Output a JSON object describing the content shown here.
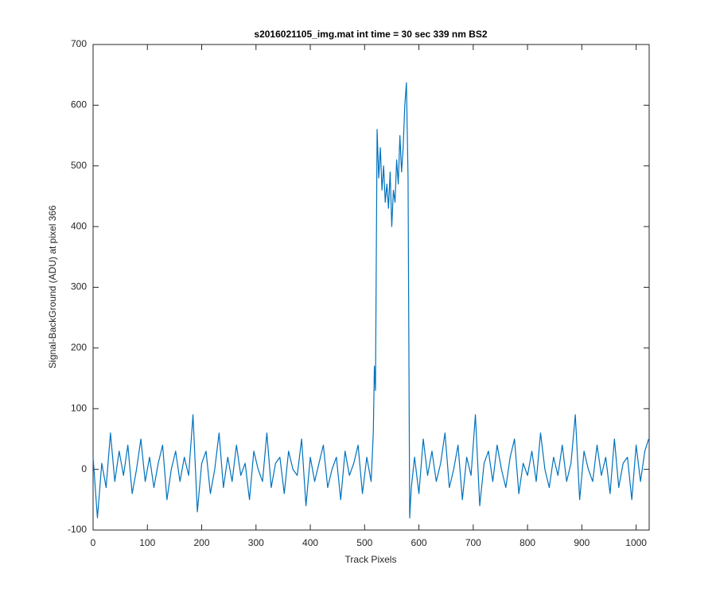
{
  "chart_data": {
    "type": "line",
    "title": "s2016021105_img.mat int time = 30 sec  339 nm BS2",
    "x_label": "Track Pixels",
    "y_label": "Signal-BackGround (ADU) at pixel 366",
    "color": "#0072bd",
    "xlim": [
      0,
      1024
    ],
    "ylim": [
      -100,
      700
    ],
    "xticks": [
      0,
      100,
      200,
      300,
      400,
      500,
      600,
      700,
      800,
      900,
      1000
    ],
    "yticks": [
      -100,
      0,
      100,
      200,
      300,
      400,
      500,
      600,
      700
    ],
    "grid": false,
    "x": [
      0,
      8,
      16,
      24,
      32,
      40,
      48,
      56,
      64,
      72,
      80,
      88,
      96,
      104,
      112,
      120,
      128,
      136,
      144,
      152,
      160,
      168,
      176,
      184,
      192,
      200,
      208,
      216,
      224,
      232,
      240,
      248,
      256,
      264,
      272,
      280,
      288,
      296,
      304,
      312,
      320,
      328,
      336,
      344,
      352,
      360,
      368,
      376,
      384,
      392,
      400,
      408,
      416,
      424,
      432,
      440,
      448,
      456,
      464,
      472,
      480,
      488,
      496,
      504,
      512,
      516,
      518,
      520,
      523,
      526,
      529,
      532,
      535,
      538,
      541,
      544,
      547,
      550,
      553,
      556,
      559,
      562,
      565,
      568,
      571,
      574,
      577,
      580,
      583,
      586,
      592,
      600,
      608,
      616,
      624,
      632,
      640,
      648,
      656,
      664,
      672,
      680,
      688,
      696,
      704,
      712,
      720,
      728,
      736,
      744,
      752,
      760,
      768,
      776,
      784,
      792,
      800,
      808,
      816,
      824,
      832,
      840,
      848,
      856,
      864,
      872,
      880,
      888,
      896,
      904,
      912,
      920,
      928,
      936,
      944,
      952,
      960,
      968,
      976,
      984,
      992,
      1000,
      1008,
      1016,
      1023
    ],
    "values": [
      20,
      -80,
      10,
      -30,
      60,
      -20,
      30,
      -10,
      40,
      -40,
      0,
      50,
      -20,
      20,
      -30,
      10,
      40,
      -50,
      0,
      30,
      -20,
      20,
      -10,
      90,
      -70,
      10,
      30,
      -40,
      0,
      60,
      -30,
      20,
      -20,
      40,
      -10,
      10,
      -50,
      30,
      0,
      -20,
      60,
      -30,
      10,
      20,
      -40,
      30,
      0,
      -10,
      50,
      -60,
      20,
      -20,
      10,
      40,
      -30,
      0,
      20,
      -50,
      30,
      -10,
      10,
      40,
      -40,
      20,
      -20,
      60,
      170,
      130,
      560,
      480,
      530,
      460,
      500,
      440,
      470,
      430,
      490,
      400,
      460,
      440,
      510,
      470,
      550,
      490,
      530,
      600,
      637,
      480,
      -80,
      -30,
      20,
      -40,
      50,
      -10,
      30,
      -20,
      10,
      60,
      -30,
      0,
      40,
      -50,
      20,
      -10,
      90,
      -60,
      10,
      30,
      -20,
      40,
      0,
      -30,
      20,
      50,
      -40,
      10,
      -10,
      30,
      -20,
      60,
      0,
      -30,
      20,
      -10,
      40,
      -20,
      10,
      90,
      -50,
      30,
      0,
      -20,
      40,
      -10,
      20,
      -40,
      50,
      -30,
      10,
      20,
      -50,
      40,
      -20,
      30,
      50
    ]
  }
}
